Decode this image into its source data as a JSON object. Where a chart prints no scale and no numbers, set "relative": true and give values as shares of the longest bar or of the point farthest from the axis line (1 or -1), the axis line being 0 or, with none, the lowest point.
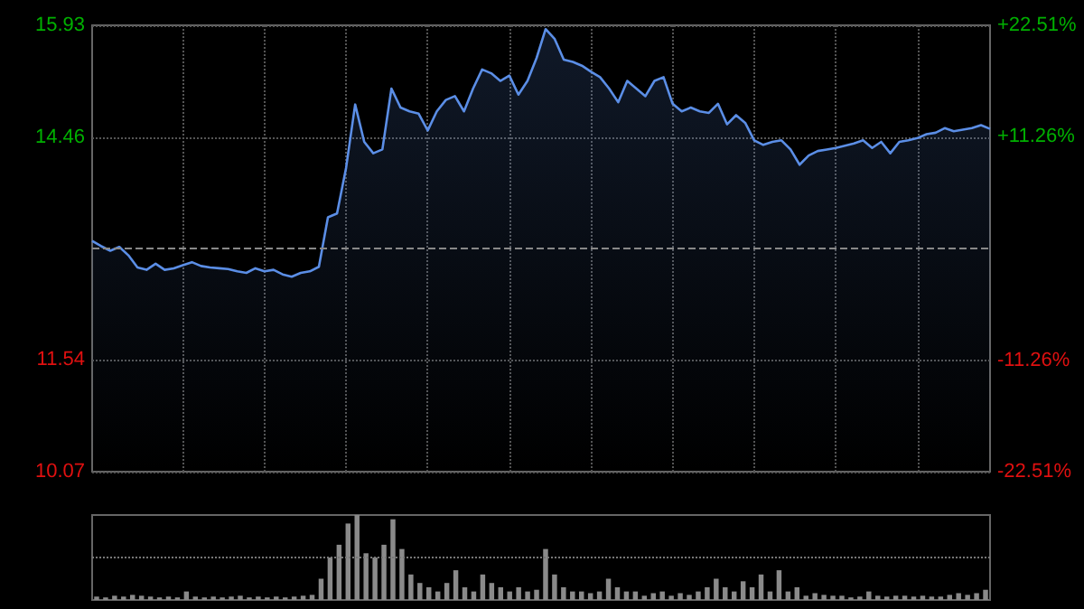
{
  "chart_data": [
    {
      "type": "area",
      "categories": [
        null,
        null,
        null,
        null,
        null,
        null,
        null,
        null,
        null,
        null,
        null,
        null,
        null,
        null,
        null,
        null,
        null,
        null,
        null,
        null,
        null,
        null,
        null,
        null,
        null,
        null,
        null,
        null,
        null,
        null,
        null,
        null,
        null,
        null,
        null,
        null,
        null,
        null,
        null,
        null,
        null,
        null,
        null,
        null,
        null,
        null,
        null,
        null,
        null,
        null,
        null,
        null,
        null,
        null,
        null,
        null,
        null,
        null,
        null,
        null,
        null,
        null,
        null,
        null,
        null,
        null,
        null,
        null,
        null,
        null,
        null,
        null,
        null,
        null,
        null,
        null,
        null,
        null,
        null,
        null,
        null,
        null,
        null,
        null,
        null,
        null,
        null,
        null,
        null,
        null,
        null,
        null,
        null,
        null,
        null,
        null,
        null,
        null,
        null,
        null
      ],
      "series": [
        {
          "color": "#5b8ee6",
          "values": [
            13.1,
            13.03,
            12.97,
            13.02,
            12.91,
            12.75,
            12.72,
            12.8,
            12.72,
            12.74,
            12.78,
            12.82,
            12.77,
            12.75,
            12.74,
            12.73,
            12.7,
            12.68,
            12.74,
            12.7,
            12.72,
            12.66,
            12.63,
            12.68,
            12.7,
            12.76,
            13.41,
            13.46,
            14.06,
            14.89,
            14.4,
            14.25,
            14.3,
            15.1,
            14.85,
            14.8,
            14.77,
            14.55,
            14.8,
            14.95,
            15.0,
            14.8,
            15.1,
            15.35,
            15.3,
            15.2,
            15.27,
            15.02,
            15.2,
            15.5,
            15.88,
            15.75,
            15.48,
            15.45,
            15.4,
            15.32,
            15.25,
            15.1,
            14.92,
            15.2,
            15.1,
            15.0,
            15.2,
            15.25,
            14.9,
            14.8,
            14.85,
            14.8,
            14.78,
            14.9,
            14.63,
            14.75,
            14.65,
            14.42,
            14.36,
            14.4,
            14.42,
            14.3,
            14.1,
            14.22,
            14.28,
            14.3,
            14.32,
            14.35,
            14.38,
            14.42,
            14.32,
            14.4,
            14.25,
            14.4,
            14.42,
            14.45,
            14.5,
            14.52,
            14.58,
            14.54,
            14.56,
            14.58,
            14.62,
            14.57
          ]
        }
      ],
      "ylim": [
        10.07,
        15.93
      ],
      "yticks": [
        10.07,
        11.54,
        14.46,
        15.93
      ],
      "y2lim": [
        -22.51,
        22.51
      ],
      "y2ticks": [
        {
          "value": -22.51,
          "label": "-22.51%"
        },
        {
          "value": -11.26,
          "label": "-11.26%"
        },
        {
          "value": 11.26,
          "label": "+11.26%"
        },
        {
          "value": 22.51,
          "label": "+22.51%"
        }
      ],
      "ref_lines": [
        {
          "axis": "y",
          "value": 13.0,
          "line_style": "dashed",
          "color": "#888888"
        }
      ],
      "grid": true
    },
    {
      "type": "bar",
      "relative": true,
      "color": "#8a8a8a",
      "ref_lines": [
        {
          "axis": "y",
          "value": 0.5,
          "line_style": "dotted",
          "color": "#777777"
        }
      ],
      "categories": [
        null,
        null,
        null,
        null,
        null,
        null,
        null,
        null,
        null,
        null,
        null,
        null,
        null,
        null,
        null,
        null,
        null,
        null,
        null,
        null,
        null,
        null,
        null,
        null,
        null,
        null,
        null,
        null,
        null,
        null,
        null,
        null,
        null,
        null,
        null,
        null,
        null,
        null,
        null,
        null,
        null,
        null,
        null,
        null,
        null,
        null,
        null,
        null,
        null,
        null,
        null,
        null,
        null,
        null,
        null,
        null,
        null,
        null,
        null,
        null,
        null,
        null,
        null,
        null,
        null,
        null,
        null,
        null,
        null,
        null,
        null,
        null,
        null,
        null,
        null,
        null,
        null,
        null,
        null,
        null,
        null,
        null,
        null,
        null,
        null,
        null,
        null,
        null,
        null,
        null,
        null,
        null,
        null,
        null,
        null,
        null,
        null,
        null,
        null,
        null
      ],
      "values": [
        0.04,
        0.03,
        0.05,
        0.04,
        0.06,
        0.05,
        0.04,
        0.03,
        0.04,
        0.03,
        0.1,
        0.04,
        0.03,
        0.04,
        0.03,
        0.04,
        0.05,
        0.03,
        0.04,
        0.03,
        0.04,
        0.03,
        0.04,
        0.05,
        0.06,
        0.25,
        0.5,
        0.65,
        0.9,
        1.0,
        0.55,
        0.5,
        0.65,
        0.95,
        0.6,
        0.3,
        0.2,
        0.15,
        0.1,
        0.2,
        0.35,
        0.15,
        0.1,
        0.3,
        0.2,
        0.15,
        0.1,
        0.15,
        0.1,
        0.12,
        0.6,
        0.3,
        0.15,
        0.1,
        0.1,
        0.08,
        0.1,
        0.25,
        0.15,
        0.1,
        0.1,
        0.05,
        0.08,
        0.1,
        0.05,
        0.08,
        0.06,
        0.1,
        0.15,
        0.25,
        0.15,
        0.1,
        0.22,
        0.15,
        0.3,
        0.1,
        0.35,
        0.1,
        0.15,
        0.05,
        0.08,
        0.06,
        0.05,
        0.05,
        0.03,
        0.04,
        0.1,
        0.05,
        0.04,
        0.05,
        0.05,
        0.04,
        0.05,
        0.04,
        0.04,
        0.06,
        0.08,
        0.06,
        0.08,
        0.12
      ]
    }
  ]
}
